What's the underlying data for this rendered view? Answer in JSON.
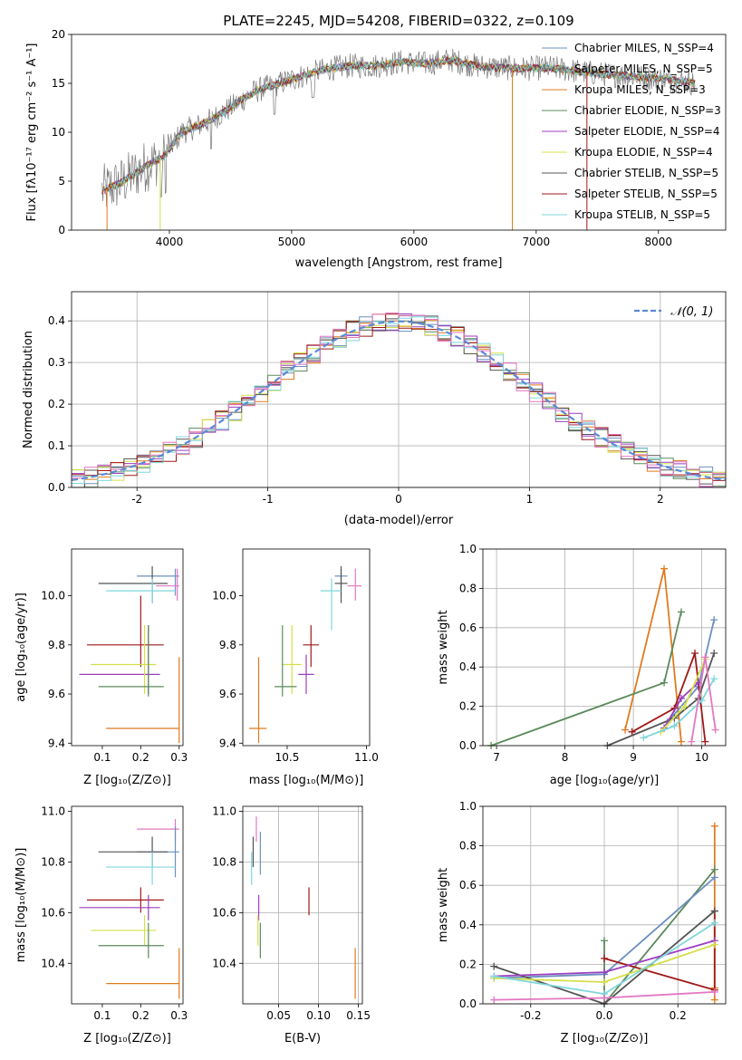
{
  "chart_data": [
    {
      "id": "spectrum",
      "type": "line",
      "title": "PLATE=2245, MJD=54208, FIBERID=0322, z=0.109",
      "xlabel": "wavelength [Angstrom, rest frame]",
      "ylabel": "Flux [fλ10⁻¹⁷ erg cm⁻² s⁻¹ A⁻¹]",
      "xlim": [
        3200,
        8550
      ],
      "ylim": [
        0,
        20
      ],
      "xticks": [
        4000,
        5000,
        6000,
        7000,
        8000
      ],
      "yticks": [
        0,
        5,
        10,
        15,
        20
      ],
      "grid": false,
      "legend_position": "right",
      "continuum_x": [
        3450,
        3600,
        3800,
        3950,
        4100,
        4300,
        4500,
        4700,
        4900,
        5100,
        5300,
        5500,
        5700,
        5900,
        6100,
        6300,
        6500,
        6700,
        6900,
        7100,
        7300,
        7500,
        7700,
        7900,
        8100,
        8300
      ],
      "continuum_y": [
        4.0,
        4.8,
        6.5,
        7.5,
        10.0,
        11.0,
        12.5,
        14.2,
        15.0,
        15.8,
        16.5,
        16.8,
        16.8,
        17.2,
        17.0,
        17.4,
        16.8,
        16.6,
        16.5,
        16.6,
        16.3,
        16.0,
        15.8,
        15.6,
        15.4,
        15.0
      ],
      "series": [
        {
          "name": "Chabrier MILES, N_SSP=4",
          "color": "#6b8fc0"
        },
        {
          "name": "Salpeter MILES, N_SSP=5",
          "color": "#6b6b6b"
        },
        {
          "name": "Kroupa MILES, N_SSP=3",
          "color": "#e07b1f"
        },
        {
          "name": "Chabrier ELODIE, N_SSP=3",
          "color": "#5b8a5b"
        },
        {
          "name": "Salpeter ELODIE, N_SSP=4",
          "color": "#9b3fbf"
        },
        {
          "name": "Kroupa ELODIE, N_SSP=4",
          "color": "#d4e04a"
        },
        {
          "name": "Chabrier STELIB, N_SSP=5",
          "color": "#555555"
        },
        {
          "name": "Salpeter STELIB, N_SSP=5",
          "color": "#a01818"
        },
        {
          "name": "Kroupa STELIB, N_SSP=5",
          "color": "#7fd6dc"
        }
      ]
    },
    {
      "id": "residuals",
      "type": "line",
      "xlabel": "(data-model)/error",
      "ylabel": "Normed distribution",
      "xlim": [
        -2.5,
        2.5
      ],
      "ylim": [
        0,
        0.47
      ],
      "xticks": [
        -2,
        -1,
        0,
        1,
        2
      ],
      "yticks": [
        0.0,
        0.1,
        0.2,
        0.3,
        0.4
      ],
      "grid": true,
      "legend_position": "top-right",
      "legend": [
        "𝒩(0, 1)"
      ],
      "bin_width": 0.1,
      "hist_colors": [
        "#6b8fc0",
        "#e07b1f",
        "#5b8a5b",
        "#9b3fbf",
        "#d4e04a",
        "#555555",
        "#a01818",
        "#7fd6dc",
        "#e377c2"
      ]
    },
    {
      "id": "age-vs-z",
      "type": "scatter",
      "xlabel": "Z [log₁₀(Z/Z⊙)]",
      "ylabel": "age  [log₁₀(age/yr)]",
      "xlim": [
        0.02,
        0.31
      ],
      "ylim": [
        9.39,
        10.19
      ],
      "xticks": [
        0.1,
        0.2,
        0.3
      ],
      "yticks": [
        9.4,
        9.6,
        9.8,
        10.0
      ],
      "grid": false,
      "points": [
        {
          "color": "#6b8fc0",
          "x": 0.29,
          "xerr": [
            0.19,
            0.3
          ],
          "y": 10.08,
          "yerr": [
            10.0,
            10.11
          ]
        },
        {
          "color": "#e377c2",
          "x": 0.295,
          "xerr": [
            0.24,
            0.3
          ],
          "y": 10.04,
          "yerr": [
            9.98,
            10.11
          ]
        },
        {
          "color": "#555555",
          "x": 0.23,
          "xerr": [
            0.09,
            0.27
          ],
          "y": 10.05,
          "yerr": [
            9.97,
            10.12
          ]
        },
        {
          "color": "#7fd6dc",
          "x": 0.23,
          "xerr": [
            0.11,
            0.29
          ],
          "y": 10.02,
          "yerr": [
            9.97,
            10.07
          ]
        },
        {
          "color": "#a01818",
          "x": 0.2,
          "xerr": [
            0.06,
            0.26
          ],
          "y": 9.8,
          "yerr": [
            9.71,
            10.0
          ]
        },
        {
          "color": "#9b3fbf",
          "x": 0.22,
          "xerr": [
            0.04,
            0.25
          ],
          "y": 9.68,
          "yerr": [
            9.6,
            9.88
          ]
        },
        {
          "color": "#d4e04a",
          "x": 0.21,
          "xerr": [
            0.07,
            0.24
          ],
          "y": 9.72,
          "yerr": [
            9.6,
            9.88
          ]
        },
        {
          "color": "#5b8a5b",
          "x": 0.22,
          "xerr": [
            0.09,
            0.26
          ],
          "y": 9.63,
          "yerr": [
            9.59,
            9.88
          ]
        },
        {
          "color": "#e07b1f",
          "x": 0.3,
          "xerr": [
            0.11,
            0.3
          ],
          "y": 9.46,
          "yerr": [
            9.4,
            9.75
          ]
        }
      ]
    },
    {
      "id": "age-vs-mass",
      "type": "scatter",
      "xlabel": "mass [log₁₀(M/M⊙)]",
      "ylabel": "",
      "xlim": [
        10.22,
        11.02
      ],
      "ylim": [
        9.39,
        10.19
      ],
      "xticks": [
        10.5,
        11.0
      ],
      "yticks": [
        9.4,
        9.6,
        9.8,
        10.0
      ],
      "grid": false,
      "points": [
        {
          "color": "#6b8fc0",
          "x": 10.84,
          "xerr": [
            10.8,
            10.88
          ],
          "y": 10.08,
          "yerr": [
            10.0,
            10.11
          ]
        },
        {
          "color": "#e377c2",
          "x": 10.93,
          "xerr": [
            10.88,
            10.97
          ],
          "y": 10.04,
          "yerr": [
            9.98,
            10.11
          ]
        },
        {
          "color": "#555555",
          "x": 10.84,
          "xerr": [
            10.8,
            10.88
          ],
          "y": 10.05,
          "yerr": [
            9.97,
            10.12
          ]
        },
        {
          "color": "#7fd6dc",
          "x": 10.78,
          "xerr": [
            10.71,
            10.84
          ],
          "y": 10.02,
          "yerr": [
            9.86,
            10.07
          ]
        },
        {
          "color": "#a01818",
          "x": 10.65,
          "xerr": [
            10.6,
            10.7
          ],
          "y": 9.8,
          "yerr": [
            9.71,
            9.88
          ]
        },
        {
          "color": "#9b3fbf",
          "x": 10.62,
          "xerr": [
            10.57,
            10.67
          ],
          "y": 9.68,
          "yerr": [
            9.6,
            9.76
          ]
        },
        {
          "color": "#d4e04a",
          "x": 10.53,
          "xerr": [
            10.47,
            10.59
          ],
          "y": 9.72,
          "yerr": [
            9.6,
            9.88
          ]
        },
        {
          "color": "#5b8a5b",
          "x": 10.47,
          "xerr": [
            10.42,
            10.56
          ],
          "y": 9.63,
          "yerr": [
            9.59,
            9.88
          ]
        },
        {
          "color": "#e07b1f",
          "x": 10.32,
          "xerr": [
            10.26,
            10.37
          ],
          "y": 9.46,
          "yerr": [
            9.4,
            9.75
          ]
        }
      ]
    },
    {
      "id": "weight-vs-age",
      "type": "line",
      "xlabel": "age  [log₁₀(age/yr)]",
      "ylabel": "mass weight",
      "xlim": [
        6.8,
        10.35
      ],
      "ylim": [
        0,
        1.0
      ],
      "xticks": [
        7,
        8,
        9,
        10
      ],
      "yticks": [
        0.0,
        0.2,
        0.4,
        0.6,
        0.8,
        1.0
      ],
      "grid": true,
      "series": [
        {
          "color": "#e07b1f",
          "x": [
            8.88,
            9.45,
            9.7
          ],
          "y": [
            0.08,
            0.9,
            0.02
          ]
        },
        {
          "color": "#5b8a5b",
          "x": [
            6.92,
            9.45,
            9.7
          ],
          "y": [
            0.0,
            0.32,
            0.68
          ]
        },
        {
          "color": "#6b8fc0",
          "x": [
            9.5,
            9.95,
            10.18
          ],
          "y": [
            0.12,
            0.3,
            0.64
          ]
        },
        {
          "color": "#a01818",
          "x": [
            8.98,
            9.6,
            9.9,
            10.05
          ],
          "y": [
            0.07,
            0.19,
            0.47,
            0.02
          ]
        },
        {
          "color": "#555555",
          "x": [
            8.62,
            9.6,
            9.95,
            10.18
          ],
          "y": [
            0.0,
            0.14,
            0.24,
            0.47
          ]
        },
        {
          "color": "#9b3fbf",
          "x": [
            9.45,
            9.7,
            9.95
          ],
          "y": [
            0.09,
            0.24,
            0.32
          ]
        },
        {
          "color": "#d4e04a",
          "x": [
            9.4,
            9.75,
            10.05
          ],
          "y": [
            0.07,
            0.2,
            0.44
          ]
        },
        {
          "color": "#7fd6dc",
          "x": [
            9.15,
            9.6,
            10.0,
            10.18
          ],
          "y": [
            0.04,
            0.1,
            0.23,
            0.34
          ]
        },
        {
          "color": "#e377c2",
          "x": [
            9.85,
            10.05,
            10.2
          ],
          "y": [
            0.02,
            0.45,
            0.08
          ]
        }
      ]
    },
    {
      "id": "mass-vs-z",
      "type": "scatter",
      "xlabel": "Z [log₁₀(Z/Z⊙)]",
      "ylabel": "mass [log₁₀(M/M⊙)]",
      "xlim": [
        0.02,
        0.31
      ],
      "ylim": [
        10.24,
        11.02
      ],
      "xticks": [
        0.1,
        0.2,
        0.3
      ],
      "yticks": [
        10.4,
        10.6,
        10.8,
        11.0
      ],
      "grid": false,
      "points": [
        {
          "color": "#e377c2",
          "x": 0.29,
          "xerr": [
            0.19,
            0.3
          ],
          "y": 10.93,
          "yerr": [
            10.88,
            10.97
          ]
        },
        {
          "color": "#6b8fc0",
          "x": 0.29,
          "xerr": [
            0.19,
            0.3
          ],
          "y": 10.84,
          "yerr": [
            10.74,
            10.94
          ]
        },
        {
          "color": "#555555",
          "x": 0.23,
          "xerr": [
            0.09,
            0.27
          ],
          "y": 10.84,
          "yerr": [
            10.78,
            10.9
          ]
        },
        {
          "color": "#7fd6dc",
          "x": 0.23,
          "xerr": [
            0.11,
            0.29
          ],
          "y": 10.78,
          "yerr": [
            10.71,
            10.84
          ]
        },
        {
          "color": "#a01818",
          "x": 0.2,
          "xerr": [
            0.06,
            0.26
          ],
          "y": 10.65,
          "yerr": [
            10.6,
            10.7
          ]
        },
        {
          "color": "#9b3fbf",
          "x": 0.22,
          "xerr": [
            0.04,
            0.25
          ],
          "y": 10.62,
          "yerr": [
            10.57,
            10.67
          ]
        },
        {
          "color": "#d4e04a",
          "x": 0.21,
          "xerr": [
            0.07,
            0.24
          ],
          "y": 10.53,
          "yerr": [
            10.47,
            10.59
          ]
        },
        {
          "color": "#5b8a5b",
          "x": 0.22,
          "xerr": [
            0.09,
            0.26
          ],
          "y": 10.47,
          "yerr": [
            10.42,
            10.56
          ]
        },
        {
          "color": "#e07b1f",
          "x": 0.3,
          "xerr": [
            0.11,
            0.3
          ],
          "y": 10.32,
          "yerr": [
            10.26,
            10.46
          ]
        }
      ]
    },
    {
      "id": "mass-vs-ebv",
      "type": "scatter",
      "xlabel": "E(B-V)",
      "ylabel": "",
      "xlim": [
        0.005,
        0.155
      ],
      "ylim": [
        10.24,
        11.02
      ],
      "xticks": [
        0.05,
        0.1,
        0.15
      ],
      "yticks": [
        10.4,
        10.6,
        10.8,
        11.0
      ],
      "grid": true,
      "points": [
        {
          "color": "#e377c2",
          "x": 0.022,
          "xerr": [
            0.022,
            0.022
          ],
          "y": 10.93,
          "yerr": [
            10.88,
            10.98
          ]
        },
        {
          "color": "#6b8fc0",
          "x": 0.027,
          "xerr": [
            0.027,
            0.027
          ],
          "y": 10.84,
          "yerr": [
            10.75,
            10.92
          ]
        },
        {
          "color": "#555555",
          "x": 0.018,
          "xerr": [
            0.018,
            0.018
          ],
          "y": 10.84,
          "yerr": [
            10.78,
            10.9
          ]
        },
        {
          "color": "#7fd6dc",
          "x": 0.016,
          "xerr": [
            0.016,
            0.016
          ],
          "y": 10.78,
          "yerr": [
            10.71,
            10.84
          ]
        },
        {
          "color": "#a01818",
          "x": 0.088,
          "xerr": [
            0.088,
            0.088
          ],
          "y": 10.65,
          "yerr": [
            10.59,
            10.7
          ]
        },
        {
          "color": "#9b3fbf",
          "x": 0.025,
          "xerr": [
            0.025,
            0.025
          ],
          "y": 10.62,
          "yerr": [
            10.57,
            10.67
          ]
        },
        {
          "color": "#d4e04a",
          "x": 0.024,
          "xerr": [
            0.024,
            0.024
          ],
          "y": 10.53,
          "yerr": [
            10.47,
            10.59
          ]
        },
        {
          "color": "#5b8a5b",
          "x": 0.027,
          "xerr": [
            0.027,
            0.027
          ],
          "y": 10.47,
          "yerr": [
            10.42,
            10.56
          ]
        },
        {
          "color": "#e07b1f",
          "x": 0.146,
          "xerr": [
            0.146,
            0.146
          ],
          "y": 10.32,
          "yerr": [
            10.26,
            10.46
          ]
        }
      ]
    },
    {
      "id": "weight-vs-z",
      "type": "line",
      "xlabel": "Z [log₁₀(Z/Z⊙)]",
      "ylabel": "mass weight",
      "xlim": [
        -0.33,
        0.33
      ],
      "ylim": [
        0,
        1.0
      ],
      "xticks": [
        -0.2,
        0.0,
        0.2
      ],
      "yticks": [
        0.0,
        0.2,
        0.4,
        0.6,
        0.8,
        1.0
      ],
      "grid": true,
      "series": [
        {
          "color": "#e07b1f",
          "x": [
            0.3,
            0.3,
            0.3
          ],
          "y": [
            0.02,
            0.9,
            0.08
          ]
        },
        {
          "color": "#5b8a5b",
          "x": [
            0.0,
            0.0,
            0.3
          ],
          "y": [
            0.32,
            0.0,
            0.68
          ]
        },
        {
          "color": "#6b8fc0",
          "x": [
            -0.3,
            0.0,
            0.3
          ],
          "y": [
            0.13,
            0.15,
            0.64
          ]
        },
        {
          "color": "#a01818",
          "x": [
            0.0,
            0.3,
            0.3
          ],
          "y": [
            0.23,
            0.07,
            0.47
          ]
        },
        {
          "color": "#555555",
          "x": [
            -0.3,
            0.0,
            0.3
          ],
          "y": [
            0.19,
            0.0,
            0.47
          ]
        },
        {
          "color": "#9b3fbf",
          "x": [
            -0.3,
            0.0,
            0.3
          ],
          "y": [
            0.14,
            0.16,
            0.32
          ]
        },
        {
          "color": "#d4e04a",
          "x": [
            -0.3,
            0.0,
            0.3
          ],
          "y": [
            0.13,
            0.11,
            0.3
          ]
        },
        {
          "color": "#7fd6dc",
          "x": [
            -0.3,
            0.0,
            0.3
          ],
          "y": [
            0.14,
            0.05,
            0.41
          ]
        },
        {
          "color": "#e377c2",
          "x": [
            -0.3,
            0.0,
            0.3
          ],
          "y": [
            0.02,
            0.03,
            0.06
          ]
        }
      ]
    }
  ]
}
